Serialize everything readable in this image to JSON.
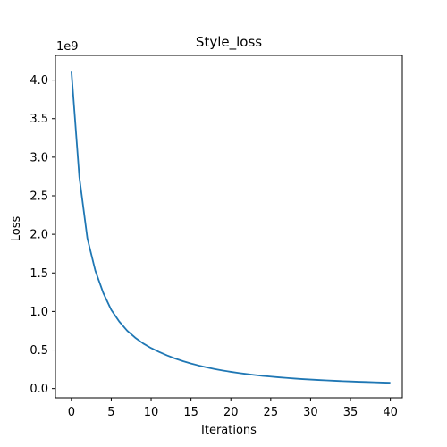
{
  "chart_data": {
    "type": "line",
    "title": "Style_loss",
    "xlabel": "Iterations",
    "ylabel": "Loss",
    "y_offset_label": "1e9",
    "xlim": [
      -2,
      41.5
    ],
    "ylim": [
      -0.12,
      4.32
    ],
    "xticks": [
      0,
      5,
      10,
      15,
      20,
      25,
      30,
      35,
      40
    ],
    "yticks": [
      0.0,
      0.5,
      1.0,
      1.5,
      2.0,
      2.5,
      3.0,
      3.5,
      4.0
    ],
    "ytick_labels": [
      "0.0",
      "0.5",
      "1.0",
      "1.5",
      "2.0",
      "2.5",
      "3.0",
      "3.5",
      "4.0"
    ],
    "grid": false,
    "series": [
      {
        "color": "#1f77b4",
        "x": [
          0,
          1,
          2,
          3,
          4,
          5,
          6,
          7,
          8,
          9,
          10,
          11,
          12,
          13,
          14,
          15,
          16,
          17,
          18,
          19,
          20,
          21,
          22,
          23,
          24,
          25,
          26,
          27,
          28,
          29,
          30,
          31,
          32,
          33,
          34,
          35,
          36,
          37,
          38,
          39,
          40
        ],
        "values": [
          4.12,
          2.74,
          1.95,
          1.53,
          1.24,
          1.02,
          0.87,
          0.75,
          0.66,
          0.585,
          0.525,
          0.475,
          0.43,
          0.39,
          0.355,
          0.325,
          0.298,
          0.274,
          0.253,
          0.234,
          0.217,
          0.202,
          0.188,
          0.176,
          0.165,
          0.155,
          0.146,
          0.138,
          0.13,
          0.123,
          0.117,
          0.111,
          0.106,
          0.101,
          0.096,
          0.092,
          0.088,
          0.085,
          0.081,
          0.078,
          0.075
        ]
      }
    ]
  }
}
